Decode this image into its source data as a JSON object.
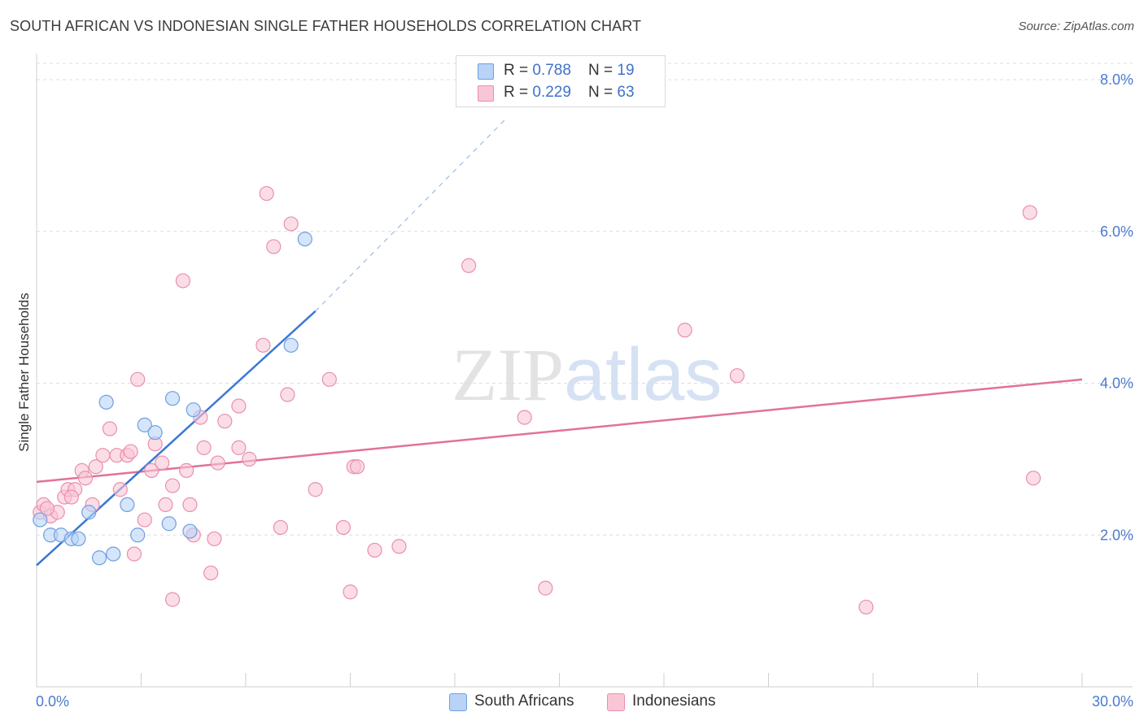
{
  "title": "SOUTH AFRICAN VS INDONESIAN SINGLE FATHER HOUSEHOLDS CORRELATION CHART",
  "source": "Source: ZipAtlas.com",
  "watermark": {
    "part1": "ZIP",
    "part2": "atlas"
  },
  "legend": {
    "rows": [
      {
        "r_label": "R = ",
        "r_value": "0.788",
        "n_label": "N = ",
        "n_value": "19"
      },
      {
        "r_label": "R = ",
        "r_value": "0.229",
        "n_label": "N = ",
        "n_value": "63"
      }
    ]
  },
  "colors": {
    "blue_fill": "#b9d3f7",
    "blue_stroke": "#6f9fe0",
    "blue_line": "#3a78d4",
    "pink_fill": "#f9c6d6",
    "pink_stroke": "#ea8fad",
    "pink_line": "#e2719a",
    "axis_text": "#4a7bd0",
    "grid": "#dedede"
  },
  "chart_data": {
    "type": "scatter",
    "title": "SOUTH AFRICAN VS INDONESIAN SINGLE FATHER HOUSEHOLDS CORRELATION CHART",
    "ylabel": "Single Father Households",
    "xlim": [
      0,
      30
    ],
    "ylim": [
      0,
      8.3
    ],
    "x_tick_labels": [
      {
        "value": 0,
        "label": "0.0%"
      },
      {
        "value": 30,
        "label": "30.0%"
      }
    ],
    "y_tick_labels": [
      {
        "value": 2,
        "label": "2.0%"
      },
      {
        "value": 4,
        "label": "4.0%"
      },
      {
        "value": 6,
        "label": "6.0%"
      },
      {
        "value": 8,
        "label": "8.0%"
      }
    ],
    "grid": "horizontal dashed",
    "legend_position": "top-center",
    "series": [
      {
        "name": "South Africans",
        "color": "#b9d3f7",
        "points": [
          [
            0.1,
            2.2
          ],
          [
            0.4,
            2.0
          ],
          [
            0.7,
            2.0
          ],
          [
            1.0,
            1.95
          ],
          [
            1.2,
            1.95
          ],
          [
            1.5,
            2.3
          ],
          [
            1.8,
            1.7
          ],
          [
            2.0,
            3.75
          ],
          [
            2.2,
            1.75
          ],
          [
            2.6,
            2.4
          ],
          [
            2.9,
            2.0
          ],
          [
            3.1,
            3.45
          ],
          [
            3.4,
            3.35
          ],
          [
            3.8,
            2.15
          ],
          [
            3.9,
            3.8
          ],
          [
            4.4,
            2.05
          ],
          [
            4.5,
            3.65
          ],
          [
            7.3,
            4.5
          ],
          [
            7.7,
            5.9
          ]
        ],
        "trend": {
          "from": [
            0,
            1.6
          ],
          "to": [
            8,
            4.95
          ],
          "dashed_to": [
            13.5,
            7.5
          ]
        }
      },
      {
        "name": "Indonesians",
        "color": "#f9c6d6",
        "points": [
          [
            0.1,
            2.3
          ],
          [
            0.2,
            2.4
          ],
          [
            0.4,
            2.25
          ],
          [
            0.6,
            2.3
          ],
          [
            0.8,
            2.5
          ],
          [
            0.9,
            2.6
          ],
          [
            1.1,
            2.6
          ],
          [
            1.3,
            2.85
          ],
          [
            1.4,
            2.75
          ],
          [
            1.6,
            2.4
          ],
          [
            1.7,
            2.9
          ],
          [
            1.9,
            3.05
          ],
          [
            2.1,
            3.4
          ],
          [
            2.3,
            3.05
          ],
          [
            2.4,
            2.6
          ],
          [
            2.6,
            3.05
          ],
          [
            2.7,
            3.1
          ],
          [
            2.8,
            1.75
          ],
          [
            2.9,
            4.05
          ],
          [
            3.1,
            2.2
          ],
          [
            3.3,
            2.85
          ],
          [
            3.4,
            3.2
          ],
          [
            3.6,
            2.95
          ],
          [
            3.7,
            2.4
          ],
          [
            3.9,
            2.65
          ],
          [
            3.9,
            1.15
          ],
          [
            4.2,
            5.35
          ],
          [
            4.3,
            2.85
          ],
          [
            4.4,
            2.4
          ],
          [
            4.5,
            2.0
          ],
          [
            4.7,
            3.55
          ],
          [
            4.8,
            3.15
          ],
          [
            5.0,
            1.5
          ],
          [
            5.1,
            1.95
          ],
          [
            5.2,
            2.95
          ],
          [
            5.4,
            3.5
          ],
          [
            5.8,
            3.15
          ],
          [
            5.8,
            3.7
          ],
          [
            6.1,
            3.0
          ],
          [
            6.5,
            4.5
          ],
          [
            6.6,
            6.5
          ],
          [
            6.8,
            5.8
          ],
          [
            7.0,
            2.1
          ],
          [
            7.2,
            3.85
          ],
          [
            7.3,
            6.1
          ],
          [
            8.0,
            2.6
          ],
          [
            8.4,
            4.05
          ],
          [
            8.8,
            2.1
          ],
          [
            9.0,
            1.25
          ],
          [
            9.1,
            2.9
          ],
          [
            9.2,
            2.9
          ],
          [
            9.7,
            1.8
          ],
          [
            10.4,
            1.85
          ],
          [
            12.4,
            5.55
          ],
          [
            14.0,
            3.55
          ],
          [
            14.6,
            1.3
          ],
          [
            18.6,
            4.7
          ],
          [
            20.1,
            4.1
          ],
          [
            23.8,
            1.05
          ],
          [
            28.5,
            6.25
          ],
          [
            28.6,
            2.75
          ],
          [
            0.3,
            2.35
          ],
          [
            1.0,
            2.5
          ]
        ],
        "trend": {
          "from": [
            0,
            2.7
          ],
          "to": [
            30,
            4.05
          ]
        }
      }
    ]
  }
}
